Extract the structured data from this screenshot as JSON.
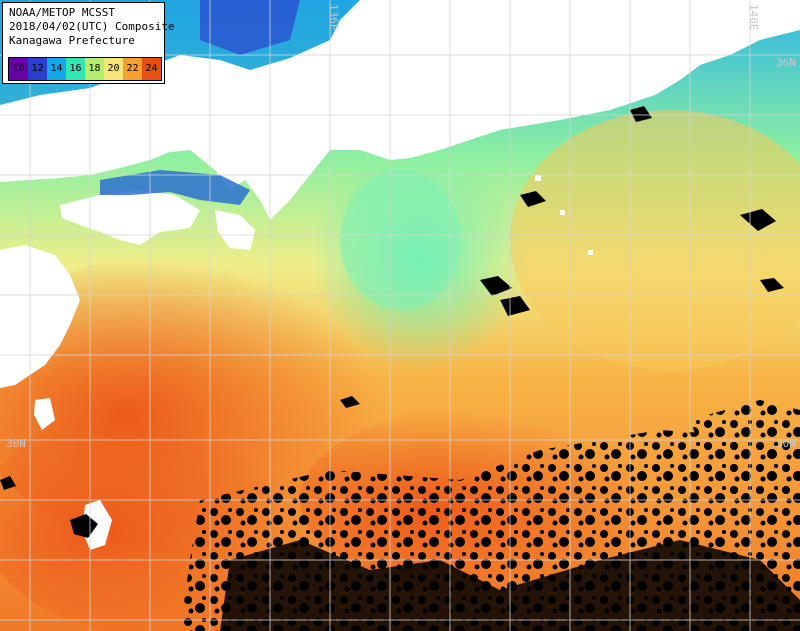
{
  "legend": {
    "line1": "NOAA/METOP MCSST",
    "line2": "2018/04/02(UTC) Composite",
    "line3": "Kanagawa Prefecture",
    "scale": [
      "10",
      "12",
      "14",
      "16",
      "18",
      "20",
      "22",
      "24"
    ]
  },
  "graticule": {
    "lon_label_136": "136E",
    "lon_label_140": "140E",
    "lat_label_36_right": "36N",
    "lat_label_30_left": "30N",
    "lat_label_30_right": "30N"
  },
  "colors": {
    "land": "#ffffff",
    "cloud": "#000000",
    "grid": "#cccccc",
    "sst_10": "#6a00a8",
    "sst_12": "#2a3fd0",
    "sst_14": "#14a8e6",
    "sst_16": "#32e6b4",
    "sst_18": "#b4f06e",
    "sst_20": "#f5e678",
    "sst_22": "#f5a032",
    "sst_24": "#e65014"
  }
}
